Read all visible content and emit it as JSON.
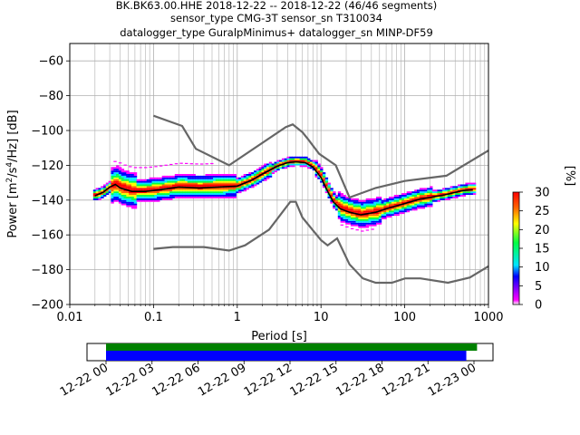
{
  "chart_data": {
    "type": "heatmap",
    "title_lines": [
      "BK.BK63.00.HHE   2018-12-22 -- 2018-12-22  (46/46 segments)",
      "sensor_type CMG-3T sensor_sn T310034",
      "datalogger_type GuralpMinimus+ datalogger_sn MINP-DF59"
    ],
    "xlabel": "Period [s]",
    "ylabel_parts": [
      "Power [m",
      "2",
      "/s",
      "4",
      "/Hz] [dB]"
    ],
    "x_scale": "log",
    "xlim": [
      0.01,
      1000
    ],
    "ylim": [
      -200,
      -50
    ],
    "x_ticks": [
      0.01,
      0.1,
      1,
      10,
      100,
      1000
    ],
    "x_tick_labels": [
      "0.01",
      "0.1",
      "1",
      "10",
      "100",
      "1000"
    ],
    "y_ticks": [
      -200,
      -180,
      -160,
      -140,
      -120,
      -100,
      -80,
      -60
    ],
    "y_tick_labels": [
      "−200",
      "−180",
      "−160",
      "−140",
      "−120",
      "−100",
      "−80",
      "−60"
    ],
    "grid": true,
    "colorbar": {
      "label": "[%]",
      "min": 0,
      "max": 30,
      "ticks": [
        0,
        5,
        10,
        15,
        20,
        25,
        30
      ],
      "tick_labels": [
        "0",
        "5",
        "10",
        "15",
        "20",
        "25",
        "30"
      ],
      "colors": [
        "#ffffff",
        "#ff00ff",
        "#0000ff",
        "#00e5ff",
        "#00ff44",
        "#ffff00",
        "#ff6600",
        "#ff0000"
      ]
    },
    "nlnm": [
      [
        0.1,
        -168
      ],
      [
        0.17,
        -167
      ],
      [
        0.4,
        -167
      ],
      [
        0.8,
        -169
      ],
      [
        1.24,
        -166
      ],
      [
        2.4,
        -157
      ],
      [
        4.3,
        -141
      ],
      [
        5.0,
        -141
      ],
      [
        6.0,
        -150
      ],
      [
        10,
        -163
      ],
      [
        12,
        -166
      ],
      [
        15.6,
        -162
      ],
      [
        21.9,
        -177
      ],
      [
        31.6,
        -185
      ],
      [
        45,
        -187.5
      ],
      [
        70,
        -187.5
      ],
      [
        101,
        -185
      ],
      [
        154,
        -185
      ],
      [
        328,
        -187.5
      ],
      [
        600,
        -184.5
      ],
      [
        1000,
        -178
      ]
    ],
    "nhnm": [
      [
        0.1,
        -91.5
      ],
      [
        0.22,
        -97.4
      ],
      [
        0.32,
        -110.5
      ],
      [
        0.8,
        -120
      ],
      [
        3.8,
        -98
      ],
      [
        4.6,
        -96.5
      ],
      [
        6.0,
        -101
      ],
      [
        7.0,
        -105
      ],
      [
        9.5,
        -113.4
      ],
      [
        15,
        -120
      ],
      [
        21.9,
        -138.5
      ],
      [
        45,
        -133
      ],
      [
        100,
        -129
      ],
      [
        315,
        -126
      ],
      [
        1000,
        -111.5
      ]
    ],
    "mean_curve": [
      [
        0.02,
        -137.5
      ],
      [
        0.025,
        -135.5
      ],
      [
        0.03,
        -132.5
      ],
      [
        0.035,
        -131
      ],
      [
        0.04,
        -133
      ],
      [
        0.055,
        -135
      ],
      [
        0.08,
        -135
      ],
      [
        0.12,
        -134
      ],
      [
        0.2,
        -132.5
      ],
      [
        0.35,
        -133
      ],
      [
        0.6,
        -132.5
      ],
      [
        1,
        -132
      ],
      [
        1.5,
        -128.5
      ],
      [
        2,
        -125
      ],
      [
        3,
        -120.5
      ],
      [
        4,
        -118.5
      ],
      [
        5,
        -118
      ],
      [
        6.5,
        -118.5
      ],
      [
        8,
        -121
      ],
      [
        10,
        -127
      ],
      [
        12,
        -135
      ],
      [
        14,
        -141
      ],
      [
        17,
        -145
      ],
      [
        22,
        -147
      ],
      [
        30,
        -148.5
      ],
      [
        45,
        -147
      ],
      [
        60,
        -145
      ],
      [
        100,
        -142
      ],
      [
        150,
        -139.5
      ],
      [
        200,
        -138.5
      ],
      [
        300,
        -137
      ],
      [
        500,
        -134.5
      ],
      [
        650,
        -134
      ]
    ],
    "timeline": {
      "start": "2018-12-22 00:00",
      "end": "2018-12-23 00:00",
      "tick_labels": [
        "12-22 00",
        "12-22 03",
        "12-22 06",
        "12-22 09",
        "12-22 12",
        "12-22 15",
        "12-22 18",
        "12-22 21",
        "12-23 00"
      ],
      "bars": [
        {
          "color": "#008000",
          "start_hour": 0,
          "end_hour": 24.2
        },
        {
          "color": "#0000ff",
          "start_hour": 0,
          "end_hour": 23.5
        }
      ]
    }
  }
}
